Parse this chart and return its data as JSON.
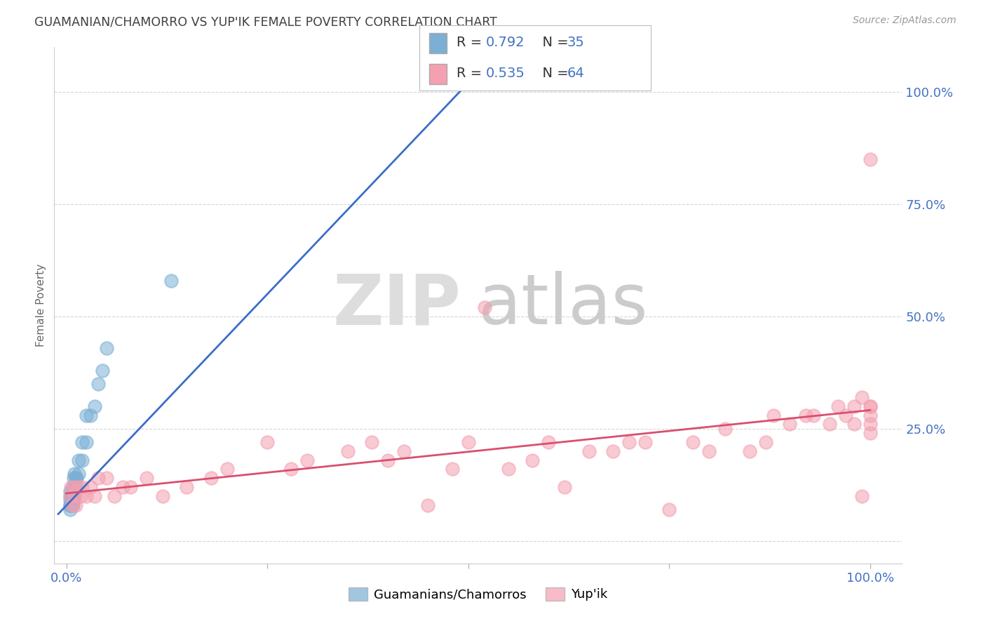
{
  "title": "GUAMANIAN/CHAMORRO VS YUP'IK FEMALE POVERTY CORRELATION CHART",
  "source": "Source: ZipAtlas.com",
  "ylabel": "Female Poverty",
  "xticks": [
    0.0,
    0.25,
    0.5,
    0.75,
    1.0
  ],
  "xticklabels": [
    "0.0%",
    "",
    "",
    "",
    "100.0%"
  ],
  "yticks": [
    0.0,
    0.25,
    0.5,
    0.75,
    1.0
  ],
  "yticklabels": [
    "",
    "25.0%",
    "50.0%",
    "75.0%",
    "100.0%"
  ],
  "blue_color": "#7BAFD4",
  "pink_color": "#F4A0B0",
  "blue_line_color": "#3B6EC8",
  "pink_line_color": "#D94F70",
  "R_blue": 0.792,
  "N_blue": 35,
  "R_pink": 0.535,
  "N_pink": 64,
  "legend_label_blue": "Guamanians/Chamorros",
  "legend_label_pink": "Yup'ik",
  "watermark_zip": "ZIP",
  "watermark_atlas": "atlas",
  "title_color": "#404040",
  "tick_color": "#4472C4",
  "background_color": "#FFFFFF",
  "grid_color": "#CCCCCC",
  "blue_scatter_x": [
    0.005,
    0.005,
    0.005,
    0.005,
    0.005,
    0.005,
    0.007,
    0.007,
    0.007,
    0.007,
    0.008,
    0.008,
    0.008,
    0.009,
    0.009,
    0.009,
    0.009,
    0.01,
    0.01,
    0.01,
    0.012,
    0.012,
    0.013,
    0.015,
    0.015,
    0.02,
    0.02,
    0.025,
    0.025,
    0.03,
    0.035,
    0.04,
    0.045,
    0.05,
    0.13
  ],
  "blue_scatter_y": [
    0.07,
    0.08,
    0.08,
    0.09,
    0.1,
    0.11,
    0.08,
    0.09,
    0.1,
    0.11,
    0.08,
    0.09,
    0.12,
    0.09,
    0.1,
    0.12,
    0.14,
    0.1,
    0.12,
    0.15,
    0.12,
    0.14,
    0.14,
    0.15,
    0.18,
    0.18,
    0.22,
    0.22,
    0.28,
    0.28,
    0.3,
    0.35,
    0.38,
    0.43,
    0.58
  ],
  "pink_scatter_x": [
    0.005,
    0.006,
    0.007,
    0.01,
    0.01,
    0.012,
    0.015,
    0.018,
    0.02,
    0.025,
    0.03,
    0.035,
    0.04,
    0.05,
    0.06,
    0.07,
    0.08,
    0.1,
    0.12,
    0.15,
    0.18,
    0.2,
    0.25,
    0.28,
    0.3,
    0.35,
    0.38,
    0.4,
    0.42,
    0.45,
    0.48,
    0.5,
    0.52,
    0.55,
    0.58,
    0.6,
    0.62,
    0.65,
    0.68,
    0.7,
    0.72,
    0.75,
    0.78,
    0.8,
    0.82,
    0.85,
    0.87,
    0.88,
    0.9,
    0.92,
    0.93,
    0.95,
    0.96,
    0.97,
    0.98,
    0.98,
    0.99,
    0.99,
    1.0,
    1.0,
    1.0,
    1.0,
    1.0,
    1.0
  ],
  "pink_scatter_y": [
    0.1,
    0.12,
    0.08,
    0.12,
    0.1,
    0.08,
    0.12,
    0.1,
    0.12,
    0.1,
    0.12,
    0.1,
    0.14,
    0.14,
    0.1,
    0.12,
    0.12,
    0.14,
    0.1,
    0.12,
    0.14,
    0.16,
    0.22,
    0.16,
    0.18,
    0.2,
    0.22,
    0.18,
    0.2,
    0.08,
    0.16,
    0.22,
    0.52,
    0.16,
    0.18,
    0.22,
    0.12,
    0.2,
    0.2,
    0.22,
    0.22,
    0.07,
    0.22,
    0.2,
    0.25,
    0.2,
    0.22,
    0.28,
    0.26,
    0.28,
    0.28,
    0.26,
    0.3,
    0.28,
    0.26,
    0.3,
    0.32,
    0.1,
    0.3,
    0.24,
    0.26,
    0.28,
    0.3,
    0.85
  ]
}
